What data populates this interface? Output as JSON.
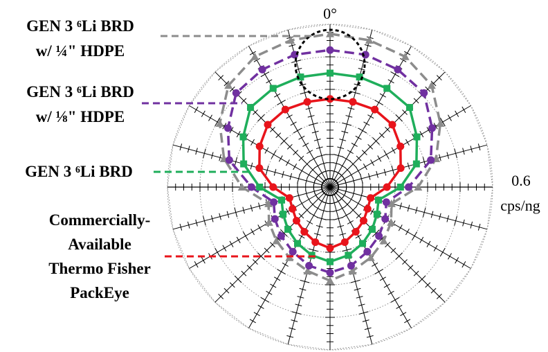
{
  "chart_data": {
    "type": "polar-line",
    "angle_label": "0°",
    "radial_max_label": "0.6",
    "radial_unit": "cps/ng",
    "rmax": 0.6,
    "angles_deg": [
      0,
      15,
      30,
      45,
      60,
      75,
      90,
      105,
      120,
      135,
      150,
      165,
      180,
      195,
      210,
      225,
      240,
      255,
      270,
      285,
      300,
      315,
      330,
      345
    ],
    "series": [
      {
        "name_line1": "GEN 3 ⁶Li BRD",
        "name_line2": "w/ ¼\" HDPE",
        "color": "#8c8c8c",
        "marker": "triangle",
        "dash": true,
        "values": [
          0.565,
          0.56,
          0.555,
          0.53,
          0.47,
          0.405,
          0.325,
          0.235,
          0.26,
          0.28,
          0.3,
          0.32,
          0.345,
          0.32,
          0.3,
          0.28,
          0.26,
          0.235,
          0.325,
          0.405,
          0.47,
          0.53,
          0.555,
          0.56
        ]
      },
      {
        "name_line1": "GEN 3 ⁶Li BRD",
        "name_line2": "w/ ⅛\" HDPE",
        "color": "#7030a0",
        "marker": "circle",
        "dash": true,
        "values": [
          0.505,
          0.505,
          0.5,
          0.49,
          0.435,
          0.385,
          0.29,
          0.215,
          0.235,
          0.255,
          0.275,
          0.3,
          0.315,
          0.3,
          0.275,
          0.255,
          0.235,
          0.215,
          0.29,
          0.385,
          0.435,
          0.49,
          0.5,
          0.505
        ]
      },
      {
        "name_line1": "GEN 3 ⁶Li BRD",
        "name_line2": "",
        "color": "#1fae5b",
        "marker": "square",
        "dash": false,
        "values": [
          0.42,
          0.42,
          0.42,
          0.415,
          0.37,
          0.33,
          0.26,
          0.185,
          0.2,
          0.22,
          0.24,
          0.26,
          0.275,
          0.26,
          0.24,
          0.22,
          0.2,
          0.185,
          0.26,
          0.33,
          0.37,
          0.415,
          0.42,
          0.42
        ]
      },
      {
        "name_line1": "Commercially-",
        "name_line2": "Available",
        "name_line3": "Thermo Fisher",
        "name_line4": "PackEye",
        "color": "#e8141b",
        "marker": "circle",
        "dash": false,
        "values": [
          0.325,
          0.325,
          0.33,
          0.325,
          0.3,
          0.27,
          0.21,
          0.155,
          0.16,
          0.175,
          0.19,
          0.21,
          0.225,
          0.21,
          0.19,
          0.175,
          0.16,
          0.155,
          0.21,
          0.27,
          0.3,
          0.325,
          0.33,
          0.325
        ]
      }
    ]
  }
}
